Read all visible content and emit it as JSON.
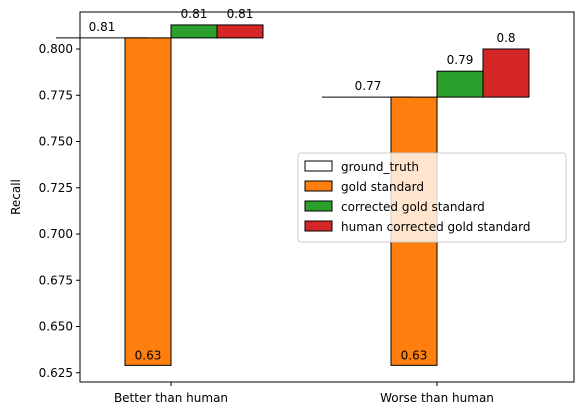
{
  "chart_data": {
    "type": "bar",
    "categories": [
      "Better than human",
      "Worse than human"
    ],
    "title": "",
    "xlabel": "",
    "ylabel": "Recall",
    "ylim": [
      0.62,
      0.82
    ],
    "yticks": [
      0.625,
      0.65,
      0.675,
      0.7,
      0.725,
      0.75,
      0.775,
      0.8
    ],
    "ytick_labels": [
      "0.625",
      "0.650",
      "0.675",
      "0.700",
      "0.725",
      "0.750",
      "0.775",
      "0.800"
    ],
    "legend_position": "center-right",
    "series": [
      {
        "name": "ground_truth",
        "color": "#ffffff",
        "bottoms": [
          0.806,
          0.774
        ],
        "tops": [
          0.806,
          0.774
        ],
        "labels": [
          "0.81",
          "0.77"
        ]
      },
      {
        "name": "gold standard",
        "color": "#ff7f0e",
        "bottoms": [
          0.629,
          0.629
        ],
        "tops": [
          0.806,
          0.774
        ],
        "labels": [
          "0.63",
          "0.63"
        ]
      },
      {
        "name": "corrected gold standard",
        "color": "#2ca02c",
        "bottoms": [
          0.806,
          0.774
        ],
        "tops": [
          0.813,
          0.788
        ],
        "labels": [
          "0.81",
          "0.79"
        ]
      },
      {
        "name": "human corrected gold standard",
        "color": "#d62728",
        "bottoms": [
          0.806,
          0.774
        ],
        "tops": [
          0.813,
          0.8
        ],
        "labels": [
          "0.81",
          "0.8"
        ]
      }
    ]
  }
}
